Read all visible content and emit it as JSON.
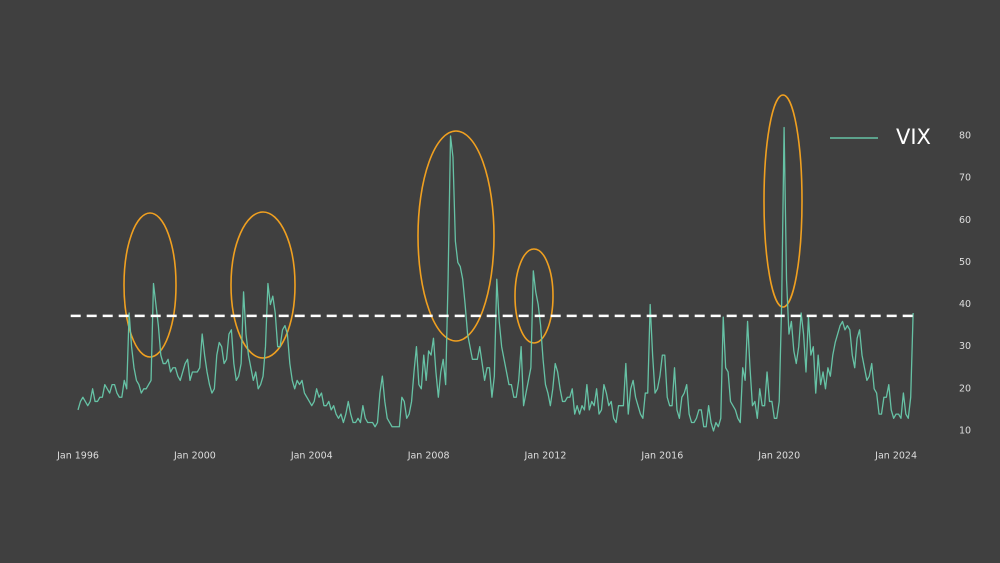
{
  "chart_data": {
    "type": "line",
    "x": [
      "1996-01",
      "1996-02",
      "1996-03",
      "1996-04",
      "1996-05",
      "1996-06",
      "1996-07",
      "1996-08",
      "1996-09",
      "1996-10",
      "1996-11",
      "1996-12",
      "1997-01",
      "1997-02",
      "1997-03",
      "1997-04",
      "1997-05",
      "1997-06",
      "1997-07",
      "1997-08",
      "1997-09",
      "1997-10",
      "1997-11",
      "1997-12",
      "1998-01",
      "1998-02",
      "1998-03",
      "1998-04",
      "1998-05",
      "1998-06",
      "1998-07",
      "1998-08",
      "1998-09",
      "1998-10",
      "1998-11",
      "1998-12",
      "1999-01",
      "1999-02",
      "1999-03",
      "1999-04",
      "1999-05",
      "1999-06",
      "1999-07",
      "1999-08",
      "1999-09",
      "1999-10",
      "1999-11",
      "1999-12",
      "2000-01",
      "2000-02",
      "2000-03",
      "2000-04",
      "2000-05",
      "2000-06",
      "2000-07",
      "2000-08",
      "2000-09",
      "2000-10",
      "2000-11",
      "2000-12",
      "2001-01",
      "2001-02",
      "2001-03",
      "2001-04",
      "2001-05",
      "2001-06",
      "2001-07",
      "2001-08",
      "2001-09",
      "2001-10",
      "2001-11",
      "2001-12",
      "2002-01",
      "2002-02",
      "2002-03",
      "2002-04",
      "2002-05",
      "2002-06",
      "2002-07",
      "2002-08",
      "2002-09",
      "2002-10",
      "2002-11",
      "2002-12",
      "2003-01",
      "2003-02",
      "2003-03",
      "2003-04",
      "2003-05",
      "2003-06",
      "2003-07",
      "2003-08",
      "2003-09",
      "2003-10",
      "2003-11",
      "2003-12",
      "2004-01",
      "2004-02",
      "2004-03",
      "2004-04",
      "2004-05",
      "2004-06",
      "2004-07",
      "2004-08",
      "2004-09",
      "2004-10",
      "2004-11",
      "2004-12",
      "2005-01",
      "2005-02",
      "2005-03",
      "2005-04",
      "2005-05",
      "2005-06",
      "2005-07",
      "2005-08",
      "2005-09",
      "2005-10",
      "2005-11",
      "2005-12",
      "2006-01",
      "2006-02",
      "2006-03",
      "2006-04",
      "2006-05",
      "2006-06",
      "2006-07",
      "2006-08",
      "2006-09",
      "2006-10",
      "2006-11",
      "2006-12",
      "2007-01",
      "2007-02",
      "2007-03",
      "2007-04",
      "2007-05",
      "2007-06",
      "2007-07",
      "2007-08",
      "2007-09",
      "2007-10",
      "2007-11",
      "2007-12",
      "2008-01",
      "2008-02",
      "2008-03",
      "2008-04",
      "2008-05",
      "2008-06",
      "2008-07",
      "2008-08",
      "2008-09",
      "2008-10",
      "2008-11",
      "2008-12",
      "2009-01",
      "2009-02",
      "2009-03",
      "2009-04",
      "2009-05",
      "2009-06",
      "2009-07",
      "2009-08",
      "2009-09",
      "2009-10",
      "2009-11",
      "2009-12",
      "2010-01",
      "2010-02",
      "2010-03",
      "2010-04",
      "2010-05",
      "2010-06",
      "2010-07",
      "2010-08",
      "2010-09",
      "2010-10",
      "2010-11",
      "2010-12",
      "2011-01",
      "2011-02",
      "2011-03",
      "2011-04",
      "2011-05",
      "2011-06",
      "2011-07",
      "2011-08",
      "2011-09",
      "2011-10",
      "2011-11",
      "2011-12",
      "2012-01",
      "2012-02",
      "2012-03",
      "2012-04",
      "2012-05",
      "2012-06",
      "2012-07",
      "2012-08",
      "2012-09",
      "2012-10",
      "2012-11",
      "2012-12",
      "2013-01",
      "2013-02",
      "2013-03",
      "2013-04",
      "2013-05",
      "2013-06",
      "2013-07",
      "2013-08",
      "2013-09",
      "2013-10",
      "2013-11",
      "2013-12",
      "2014-01",
      "2014-02",
      "2014-03",
      "2014-04",
      "2014-05",
      "2014-06",
      "2014-07",
      "2014-08",
      "2014-09",
      "2014-10",
      "2014-11",
      "2014-12",
      "2015-01",
      "2015-02",
      "2015-03",
      "2015-04",
      "2015-05",
      "2015-06",
      "2015-07",
      "2015-08",
      "2015-09",
      "2015-10",
      "2015-11",
      "2015-12",
      "2016-01",
      "2016-02",
      "2016-03",
      "2016-04",
      "2016-05",
      "2016-06",
      "2016-07",
      "2016-08",
      "2016-09",
      "2016-10",
      "2016-11",
      "2016-12",
      "2017-01",
      "2017-02",
      "2017-03",
      "2017-04",
      "2017-05",
      "2017-06",
      "2017-07",
      "2017-08",
      "2017-09",
      "2017-10",
      "2017-11",
      "2017-12",
      "2018-01",
      "2018-02",
      "2018-03",
      "2018-04",
      "2018-05",
      "2018-06",
      "2018-07",
      "2018-08",
      "2018-09",
      "2018-10",
      "2018-11",
      "2018-12",
      "2019-01",
      "2019-02",
      "2019-03",
      "2019-04",
      "2019-05",
      "2019-06",
      "2019-07",
      "2019-08",
      "2019-09",
      "2019-10",
      "2019-11",
      "2019-12",
      "2020-01",
      "2020-02",
      "2020-03",
      "2020-04",
      "2020-05",
      "2020-06",
      "2020-07",
      "2020-08",
      "2020-09",
      "2020-10",
      "2020-11",
      "2020-12",
      "2021-01",
      "2021-02",
      "2021-03",
      "2021-04",
      "2021-05",
      "2021-06",
      "2021-07",
      "2021-08",
      "2021-09",
      "2021-10",
      "2021-11",
      "2021-12",
      "2022-01",
      "2022-02",
      "2022-03",
      "2022-04",
      "2022-05",
      "2022-06",
      "2022-07",
      "2022-08",
      "2022-09",
      "2022-10",
      "2022-11",
      "2022-12",
      "2023-01",
      "2023-02",
      "2023-03",
      "2023-04",
      "2023-05",
      "2023-06",
      "2023-07",
      "2023-08",
      "2023-09",
      "2023-10",
      "2023-11",
      "2023-12",
      "2024-01",
      "2024-02",
      "2024-03",
      "2024-04",
      "2024-05",
      "2024-06",
      "2024-07",
      "2024-08"
    ],
    "series": [
      {
        "name": "VIX",
        "color": "#66c2a5",
        "values": [
          15,
          17,
          18,
          17,
          16,
          17,
          20,
          17,
          17,
          18,
          18,
          21,
          20,
          19,
          21,
          21,
          19,
          18,
          18,
          22,
          20,
          38,
          30,
          25,
          22,
          21,
          19,
          20,
          20,
          21,
          22,
          45,
          40,
          35,
          28,
          26,
          26,
          27,
          24,
          25,
          25,
          23,
          22,
          24,
          26,
          27,
          22,
          24,
          24,
          24,
          25,
          33,
          28,
          24,
          21,
          19,
          20,
          28,
          31,
          30,
          26,
          27,
          33,
          34,
          26,
          22,
          23,
          26,
          43,
          33,
          28,
          25,
          22,
          24,
          20,
          21,
          23,
          30,
          45,
          40,
          42,
          38,
          30,
          30,
          34,
          35,
          33,
          26,
          22,
          20,
          22,
          21,
          22,
          19,
          18,
          17,
          16,
          17,
          20,
          18,
          19,
          16,
          16,
          17,
          15,
          16,
          14,
          13,
          14,
          12,
          14,
          17,
          14,
          12,
          12,
          13,
          12,
          16,
          13,
          12,
          12,
          12,
          11,
          12,
          19,
          23,
          17,
          13,
          12,
          11,
          11,
          11,
          11,
          18,
          17,
          13,
          14,
          17,
          24,
          30,
          21,
          20,
          28,
          22,
          29,
          28,
          32,
          24,
          18,
          24,
          27,
          21,
          46,
          80,
          75,
          55,
          50,
          49,
          46,
          40,
          33,
          30,
          27,
          27,
          27,
          30,
          26,
          22,
          25,
          25,
          18,
          23,
          46,
          36,
          30,
          27,
          24,
          21,
          21,
          18,
          18,
          22,
          30,
          16,
          19,
          22,
          25,
          48,
          43,
          40,
          35,
          27,
          21,
          19,
          16,
          20,
          26,
          24,
          20,
          17,
          17,
          18,
          18,
          20,
          14,
          16,
          14,
          16,
          15,
          21,
          15,
          17,
          16,
          20,
          14,
          15,
          21,
          19,
          16,
          17,
          13,
          12,
          16,
          16,
          16,
          26,
          14,
          20,
          22,
          18,
          16,
          14,
          13,
          19,
          19,
          40,
          28,
          19,
          20,
          23,
          28,
          28,
          18,
          16,
          16,
          25,
          15,
          13,
          18,
          19,
          21,
          14,
          12,
          12,
          13,
          15,
          15,
          11,
          11,
          16,
          12,
          10,
          12,
          11,
          13,
          37,
          25,
          24,
          17,
          16,
          15,
          13,
          12,
          25,
          22,
          36,
          25,
          16,
          17,
          13,
          20,
          16,
          16,
          24,
          17,
          17,
          13,
          13,
          17,
          40,
          82,
          46,
          33,
          36,
          29,
          26,
          30,
          38,
          33,
          24,
          37,
          28,
          30,
          19,
          28,
          21,
          24,
          20,
          25,
          23,
          28,
          31,
          33,
          35,
          36,
          34,
          35,
          34,
          28,
          25,
          32,
          34,
          28,
          25,
          22,
          23,
          26,
          20,
          19,
          14,
          14,
          18,
          18,
          21,
          15,
          13,
          14,
          14,
          13,
          19,
          14,
          13,
          18,
          38
        ]
      }
    ],
    "xlim": [
      "1995-10",
      "2024-10"
    ],
    "xticks": [
      {
        "value": "1996-01",
        "label": "Jan 1996"
      },
      {
        "value": "2000-01",
        "label": "Jan 2000"
      },
      {
        "value": "2004-01",
        "label": "Jan 2004"
      },
      {
        "value": "2008-01",
        "label": "Jan 2008"
      },
      {
        "value": "2012-01",
        "label": "Jan 2012"
      },
      {
        "value": "2016-01",
        "label": "Jan 2016"
      },
      {
        "value": "2020-01",
        "label": "Jan 2020"
      },
      {
        "value": "2024-01",
        "label": "Jan 2024"
      }
    ],
    "ylim": [
      7,
      88
    ],
    "yticks": [
      10,
      20,
      30,
      40,
      50,
      60,
      70,
      80
    ],
    "y_axis_side": "right",
    "grid": false,
    "legend": "upper right",
    "reference_line": {
      "value": 37.3,
      "color": "#ffffff",
      "style": "dashed"
    }
  }
}
